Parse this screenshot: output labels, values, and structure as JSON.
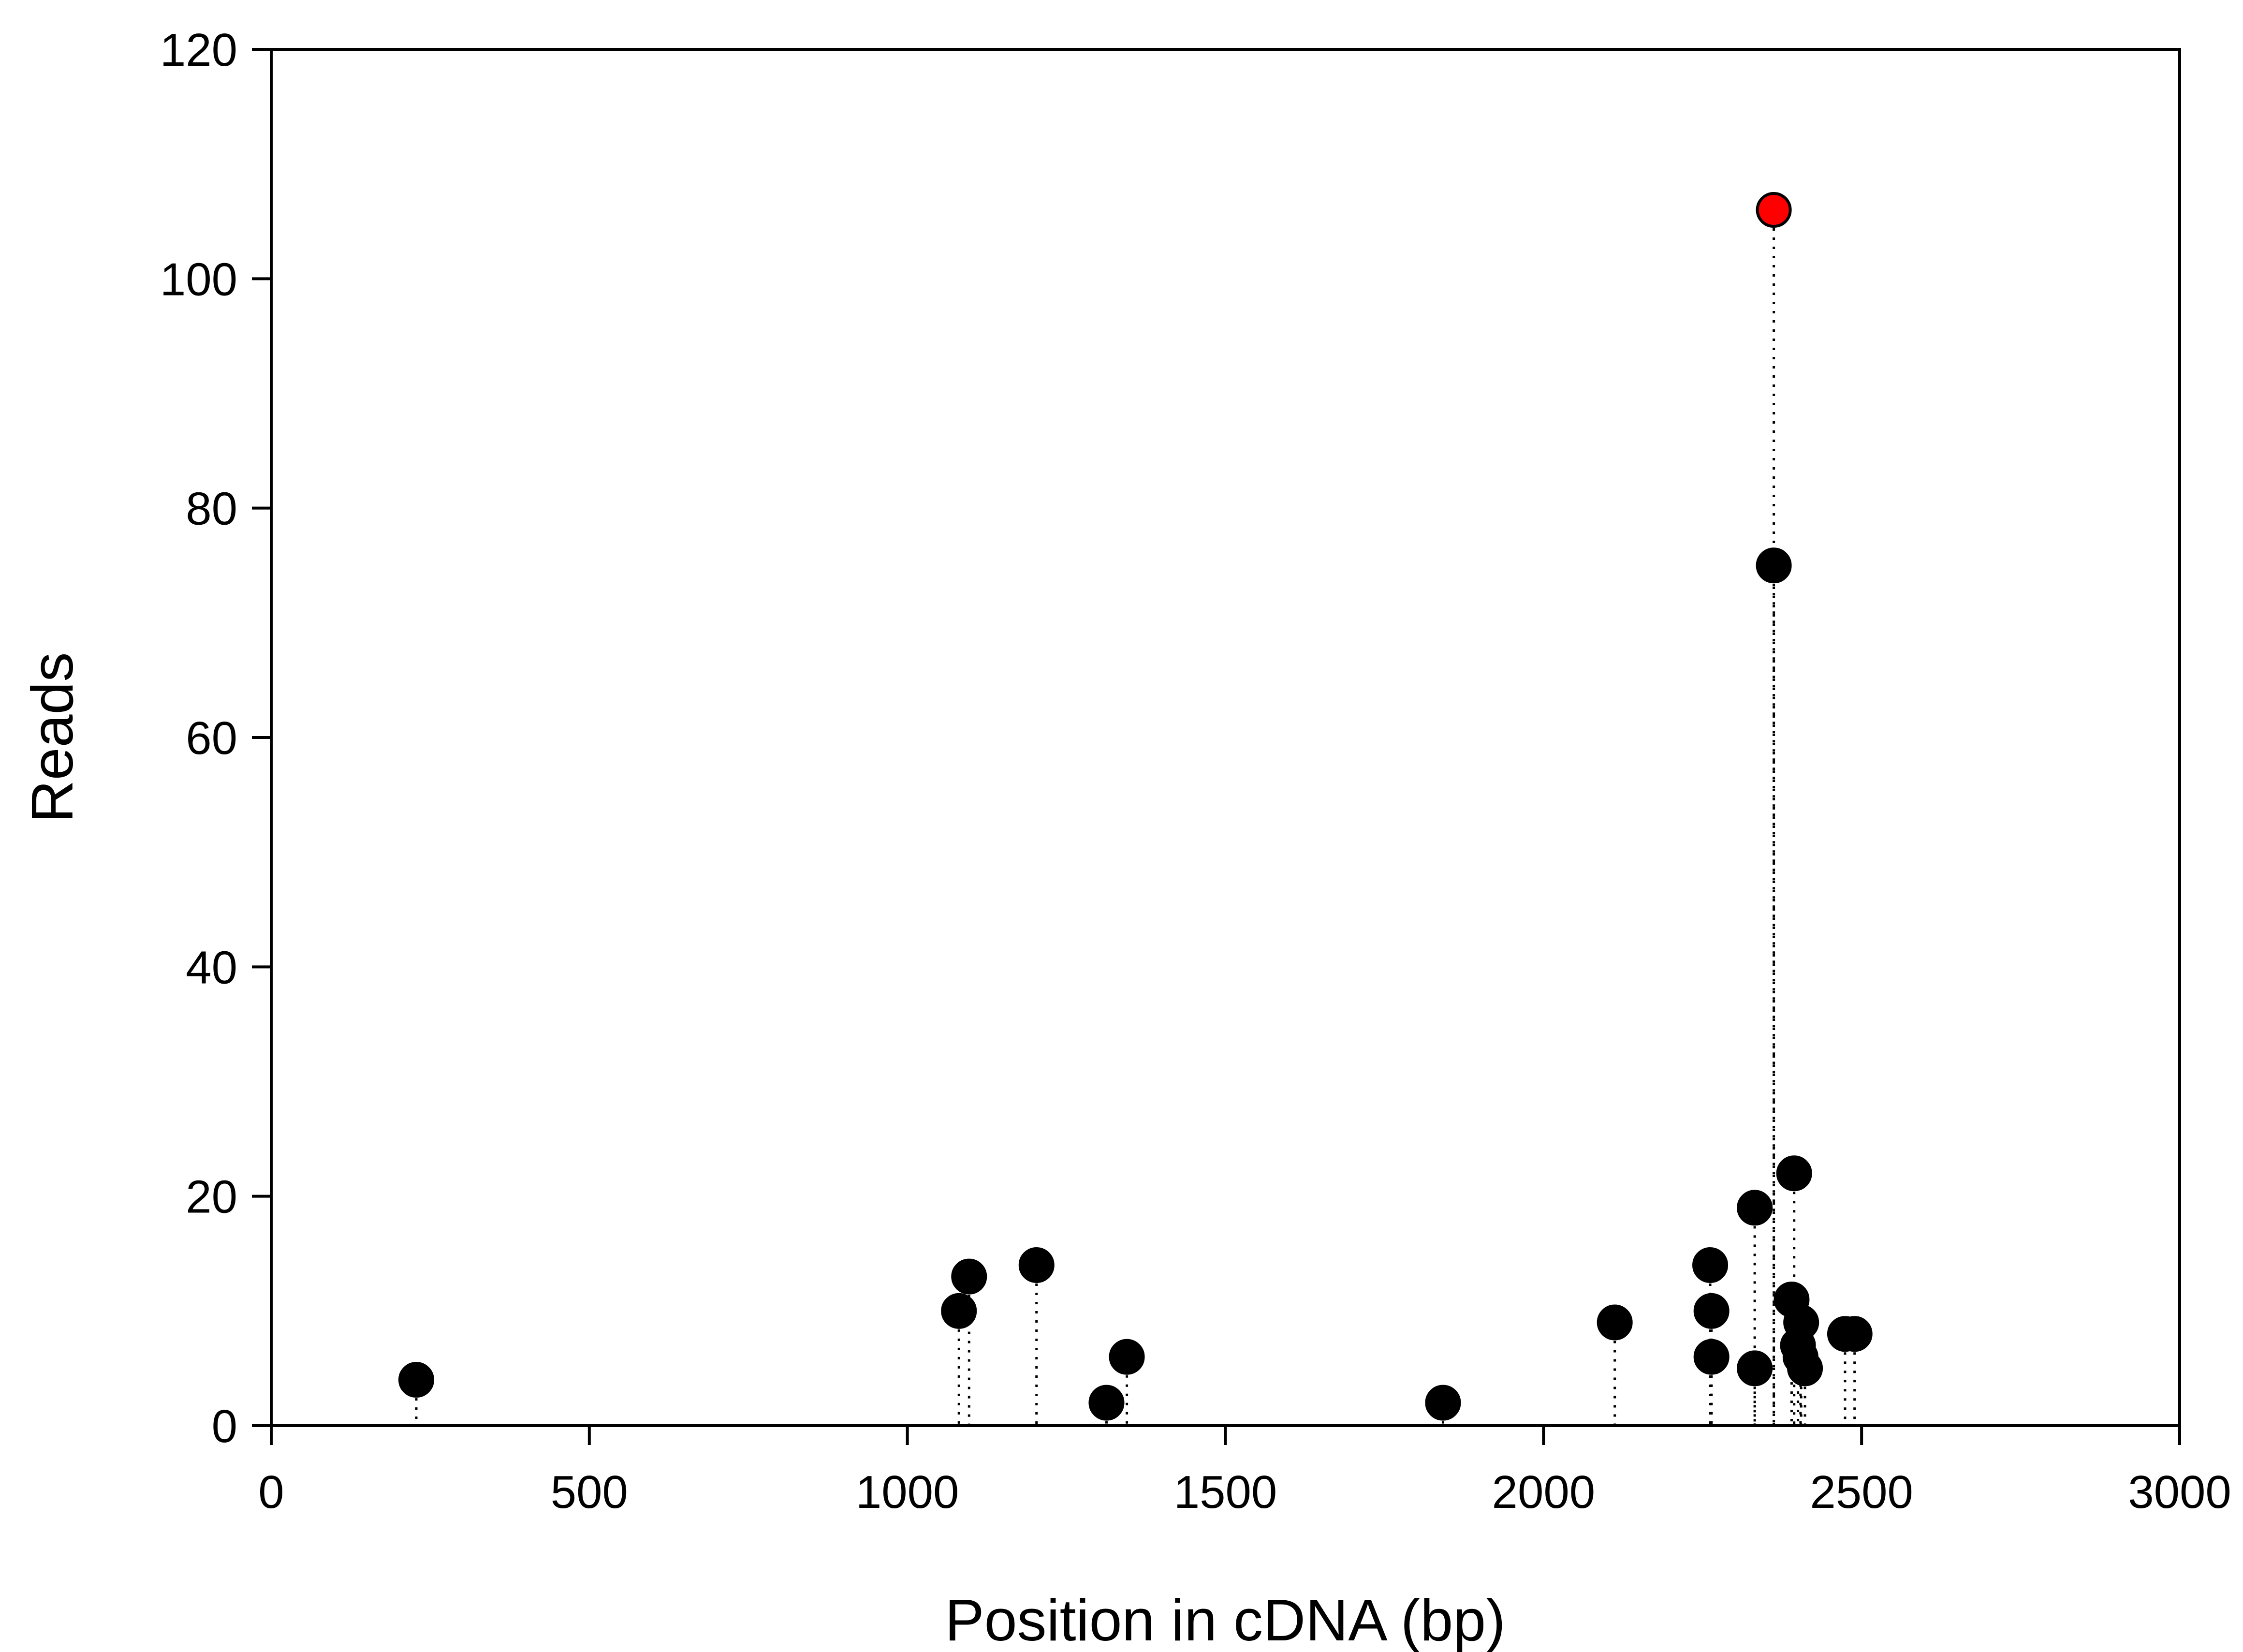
{
  "chart_data": {
    "type": "scatter",
    "title": "",
    "xlabel": "Position in cDNA (bp)",
    "ylabel": "Reads",
    "xlim": [
      0,
      3000
    ],
    "ylim": [
      0,
      120
    ],
    "x_ticks": [
      0,
      500,
      1000,
      1500,
      2000,
      2500,
      3000
    ],
    "y_ticks": [
      0,
      20,
      40,
      60,
      80,
      100,
      120
    ],
    "x_tick_labels": [
      "0",
      "500",
      "1000",
      "1500",
      "2000",
      "2500",
      "3000"
    ],
    "y_tick_labels": [
      "0",
      "20",
      "40",
      "60",
      "80",
      "100",
      "120"
    ],
    "grid": false,
    "drop_lines": "dotted",
    "marker_color": "#000000",
    "highlight_color": "#ff0000",
    "points": [
      {
        "x": 228,
        "y": 4
      },
      {
        "x": 1081,
        "y": 10
      },
      {
        "x": 1097,
        "y": 13
      },
      {
        "x": 1203,
        "y": 14
      },
      {
        "x": 1313,
        "y": 2
      },
      {
        "x": 1345,
        "y": 6
      },
      {
        "x": 1842,
        "y": 2
      },
      {
        "x": 2112,
        "y": 9
      },
      {
        "x": 2262,
        "y": 14
      },
      {
        "x": 2264,
        "y": 10
      },
      {
        "x": 2264,
        "y": 6
      },
      {
        "x": 2332,
        "y": 19
      },
      {
        "x": 2332,
        "y": 5
      },
      {
        "x": 2362,
        "y": 106,
        "highlight": true
      },
      {
        "x": 2362,
        "y": 75
      },
      {
        "x": 2394,
        "y": 22
      },
      {
        "x": 2390,
        "y": 11
      },
      {
        "x": 2405,
        "y": 9
      },
      {
        "x": 2400,
        "y": 7
      },
      {
        "x": 2404,
        "y": 6
      },
      {
        "x": 2411,
        "y": 5
      },
      {
        "x": 2474,
        "y": 8
      },
      {
        "x": 2489,
        "y": 8
      }
    ]
  }
}
